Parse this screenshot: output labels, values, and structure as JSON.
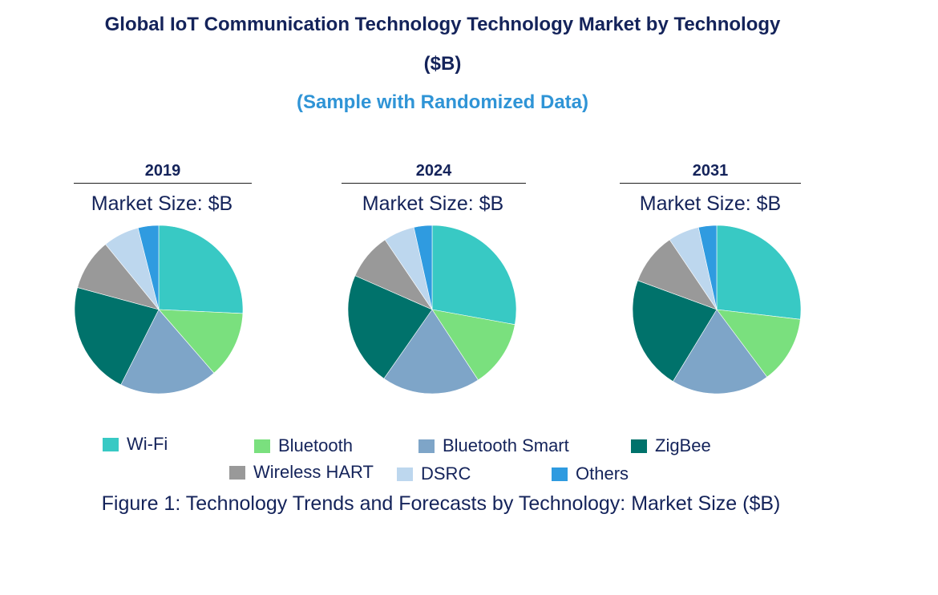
{
  "title_line1": "Global IoT Communication Technology Technology Market by Technology",
  "title_line2": "($B)",
  "subtitle": "(Sample with Randomized Data)",
  "caption": "Figure 1: Technology Trends and Forecasts by Technology: Market Size ($B)",
  "colors": {
    "Wi-Fi": "#38c9c4",
    "Bluetooth": "#7ae07e",
    "Bluetooth Smart": "#7ea5c8",
    "ZigBee": "#00726b",
    "Wireless HART": "#999999",
    "DSRC": "#bdd7ee",
    "Others": "#2f9be0"
  },
  "chart_data": [
    {
      "type": "pie",
      "year": "2019",
      "market_label": "Market Size: $B",
      "labels": [
        "Wi-Fi",
        "Bluetooth",
        "Bluetooth Smart",
        "ZigBee",
        "Wireless HART",
        "DSRC",
        "Others"
      ],
      "values": [
        26,
        13,
        19,
        22,
        10,
        7,
        4
      ]
    },
    {
      "type": "pie",
      "year": "2024",
      "market_label": "Market Size: $B",
      "labels": [
        "Wi-Fi",
        "Bluetooth",
        "Bluetooth Smart",
        "ZigBee",
        "Wireless HART",
        "DSRC",
        "Others"
      ],
      "values": [
        28,
        13,
        19,
        22,
        9,
        6,
        3.5
      ]
    },
    {
      "type": "pie",
      "year": "2031",
      "market_label": "Market Size: $B",
      "labels": [
        "Wi-Fi",
        "Bluetooth",
        "Bluetooth Smart",
        "ZigBee",
        "Wireless HART",
        "DSRC",
        "Others"
      ],
      "values": [
        27,
        13,
        19,
        22,
        10,
        6,
        3.5
      ]
    }
  ],
  "legend": [
    "Wi-Fi",
    "Bluetooth",
    "Bluetooth Smart",
    "ZigBee",
    "Wireless HART",
    "DSRC",
    "Others"
  ]
}
